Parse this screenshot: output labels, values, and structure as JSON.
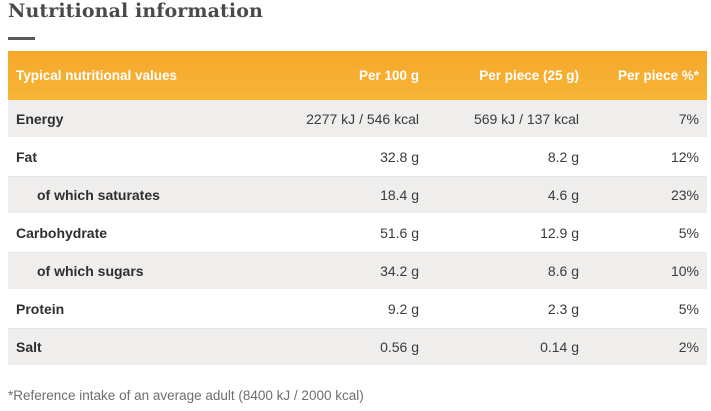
{
  "header": {
    "title": "Nutritional information"
  },
  "table": {
    "columns": [
      "Typical nutritional values",
      "Per 100 g",
      "Per piece (25 g)",
      "Per piece %*"
    ],
    "rows": [
      {
        "label": "Energy",
        "per100": "2277 kJ / 546 kcal",
        "perPiece": "569 kJ / 137 kcal",
        "percent": "7%"
      },
      {
        "label": "Fat",
        "per100": "32.8 g",
        "perPiece": "8.2 g",
        "percent": "12%"
      },
      {
        "label": "of which saturates",
        "per100": "18.4 g",
        "perPiece": "4.6 g",
        "percent": "23%"
      },
      {
        "label": "Carbohydrate",
        "per100": "51.6 g",
        "perPiece": "12.9 g",
        "percent": "5%"
      },
      {
        "label": "of which sugars",
        "per100": "34.2 g",
        "perPiece": "8.6 g",
        "percent": "10%"
      },
      {
        "label": "Protein",
        "per100": "9.2 g",
        "perPiece": "2.3 g",
        "percent": "5%"
      },
      {
        "label": "Salt",
        "per100": "0.56 g",
        "perPiece": "0.14 g",
        "percent": "2%"
      }
    ]
  },
  "footnote": "*Reference intake of an average adult (8400 kJ / 2000 kcal)",
  "colors": {
    "header_gradient_start": "#f6a72a",
    "header_gradient_end": "#f7b537",
    "shaded_row": "#efeeec",
    "title_text": "#4a4a4a"
  }
}
